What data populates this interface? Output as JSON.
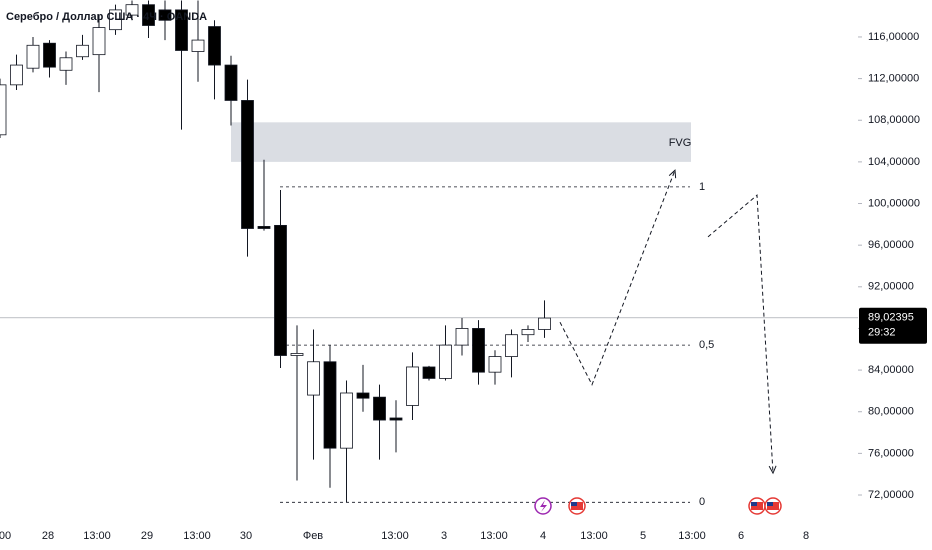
{
  "chart_data": {
    "type": "candlestick",
    "title": "Серебро / Доллар США · 4Ч · OANDA",
    "up_color": "#ffffff",
    "down_color": "#000000",
    "ylim": [
      69.6,
      119.55
    ],
    "yticks": [
      {
        "value": 72,
        "label": "72,00000"
      },
      {
        "value": 76,
        "label": "76,00000"
      },
      {
        "value": 80,
        "label": "80,00000"
      },
      {
        "value": 84,
        "label": "84,00000"
      },
      {
        "value": 88,
        "label": "88,00000"
      },
      {
        "value": 92,
        "label": "92,00000"
      },
      {
        "value": 96,
        "label": "96,00000"
      },
      {
        "value": 100,
        "label": "100,00000"
      },
      {
        "value": 104,
        "label": "104,00000"
      },
      {
        "value": 108,
        "label": "108,00000"
      },
      {
        "value": 112,
        "label": "112,00000"
      },
      {
        "value": 116,
        "label": "116,00000"
      }
    ],
    "x_labels": [
      "00",
      "28",
      "13:00",
      "29",
      "13:00",
      "30",
      "Фев",
      "13:00",
      "3",
      "13:00",
      "4",
      "13:00",
      "5",
      "13:00",
      "6",
      "8"
    ],
    "candles": [
      {
        "open": 106.6,
        "high": 112.0,
        "low": 106.3,
        "close": 111.4
      },
      {
        "open": 111.4,
        "high": 114.3,
        "low": 110.9,
        "close": 113.3
      },
      {
        "open": 113.0,
        "high": 116.0,
        "low": 112.6,
        "close": 115.2
      },
      {
        "open": 115.4,
        "high": 115.7,
        "low": 112.1,
        "close": 113.1
      },
      {
        "open": 112.8,
        "high": 114.6,
        "low": 111.4,
        "close": 114.0
      },
      {
        "open": 114.1,
        "high": 116.2,
        "low": 113.8,
        "close": 115.2
      },
      {
        "open": 114.3,
        "high": 118.1,
        "low": 110.7,
        "close": 116.9
      },
      {
        "open": 116.7,
        "high": 119.1,
        "low": 116.2,
        "close": 118.6
      },
      {
        "open": 118.1,
        "high": 119.5,
        "low": 117.6,
        "close": 119.1
      },
      {
        "open": 119.1,
        "high": 119.5,
        "low": 115.9,
        "close": 117.1
      },
      {
        "open": 118.6,
        "high": 119.5,
        "low": 115.7,
        "close": 117.6
      },
      {
        "open": 118.6,
        "high": 119.5,
        "low": 107.1,
        "close": 114.7
      },
      {
        "open": 114.6,
        "high": 119.5,
        "low": 111.7,
        "close": 115.7
      },
      {
        "open": 117.0,
        "high": 117.6,
        "low": 110.0,
        "close": 113.3
      },
      {
        "open": 113.3,
        "high": 114.2,
        "low": 107.5,
        "close": 109.9
      },
      {
        "open": 109.9,
        "high": 111.9,
        "low": 94.9,
        "close": 97.6
      },
      {
        "open": 97.8,
        "high": 104.2,
        "low": 97.4,
        "close": 97.6
      },
      {
        "open": 97.9,
        "high": 101.3,
        "low": 84.2,
        "close": 85.4
      },
      {
        "open": 85.4,
        "high": 88.3,
        "low": 73.4,
        "close": 85.6
      },
      {
        "open": 81.6,
        "high": 87.9,
        "low": 75.4,
        "close": 84.8
      },
      {
        "open": 84.8,
        "high": 86.4,
        "low": 72.7,
        "close": 76.5
      },
      {
        "open": 76.5,
        "high": 83.0,
        "low": 71.3,
        "close": 81.8
      },
      {
        "open": 81.8,
        "high": 84.5,
        "low": 80.0,
        "close": 81.3
      },
      {
        "open": 81.4,
        "high": 82.6,
        "low": 75.4,
        "close": 79.2
      },
      {
        "open": 79.4,
        "high": 81.1,
        "low": 76.1,
        "close": 79.2
      },
      {
        "open": 80.6,
        "high": 85.7,
        "low": 79.2,
        "close": 84.3
      },
      {
        "open": 84.3,
        "high": 84.4,
        "low": 83.0,
        "close": 83.2
      },
      {
        "open": 83.2,
        "high": 88.3,
        "low": 83.0,
        "close": 86.4
      },
      {
        "open": 86.4,
        "high": 89.0,
        "low": 85.4,
        "close": 88.0
      },
      {
        "open": 88.0,
        "high": 88.8,
        "low": 82.6,
        "close": 83.8
      },
      {
        "open": 83.8,
        "high": 85.9,
        "low": 82.6,
        "close": 85.3
      },
      {
        "open": 85.3,
        "high": 87.9,
        "low": 83.3,
        "close": 87.4
      },
      {
        "open": 87.4,
        "high": 88.3,
        "low": 86.7,
        "close": 87.9
      },
      {
        "open": 87.9,
        "high": 90.7,
        "low": 87.1,
        "close": 89.0
      }
    ],
    "fvg": {
      "label": "FVG",
      "top": 107.8,
      "bottom": 104.0
    },
    "levels": [
      {
        "label": "1",
        "price": 101.6
      },
      {
        "label": "0,5",
        "price": 86.4
      },
      {
        "label": "0",
        "price": 71.3
      }
    ],
    "projection": [
      [
        88.6,
        82.6,
        103.2
      ],
      [
        96.8,
        100.8,
        74.1
      ]
    ],
    "last_price": {
      "value": 89.02395,
      "label": "89,02395"
    },
    "countdown": "29:32"
  }
}
